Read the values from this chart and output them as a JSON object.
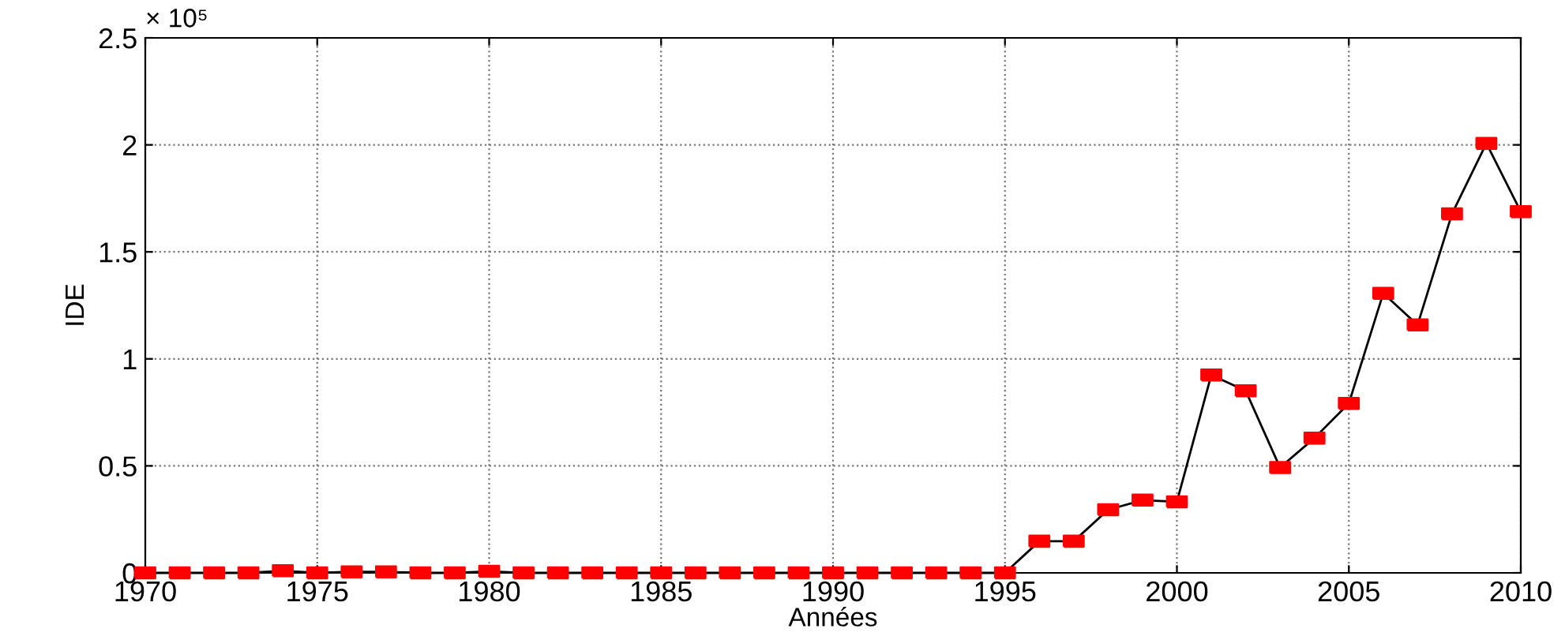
{
  "chart_data": {
    "type": "line",
    "xlabel": "Années",
    "ylabel": "IDE",
    "annotations": [
      "× 10⁵"
    ],
    "x": [
      1970,
      1971,
      1972,
      1973,
      1974,
      1975,
      1976,
      1977,
      1978,
      1979,
      1980,
      1981,
      1982,
      1983,
      1984,
      1985,
      1986,
      1987,
      1988,
      1989,
      1990,
      1991,
      1992,
      1993,
      1994,
      1995,
      1996,
      1997,
      1998,
      1999,
      2000,
      2001,
      2002,
      2003,
      2004,
      2005,
      2006,
      2007,
      2008,
      2009,
      2010
    ],
    "series": [
      {
        "color": "#ff0000",
        "values": [
          0,
          0,
          0,
          0,
          0.01,
          0,
          0.005,
          0.005,
          0,
          0,
          0.007,
          0,
          0,
          0,
          0,
          0,
          0,
          0,
          0,
          0,
          0,
          0,
          0,
          0,
          0,
          0,
          0.148,
          0.148,
          0.295,
          0.34,
          0.332,
          0.925,
          0.851,
          0.492,
          0.63,
          0.792,
          1.306,
          1.159,
          1.678,
          2.007,
          1.688
        ]
      }
    ],
    "xlim": [
      1970,
      2010
    ],
    "xticks": [
      1970,
      1975,
      1980,
      1985,
      1990,
      1995,
      2000,
      2005,
      2010
    ],
    "ylim": [
      0,
      2.5
    ],
    "yticks": [
      0,
      0.5,
      1,
      1.5,
      2,
      2.5
    ],
    "grid": true,
    "marker": "square",
    "line_style": "solid"
  }
}
